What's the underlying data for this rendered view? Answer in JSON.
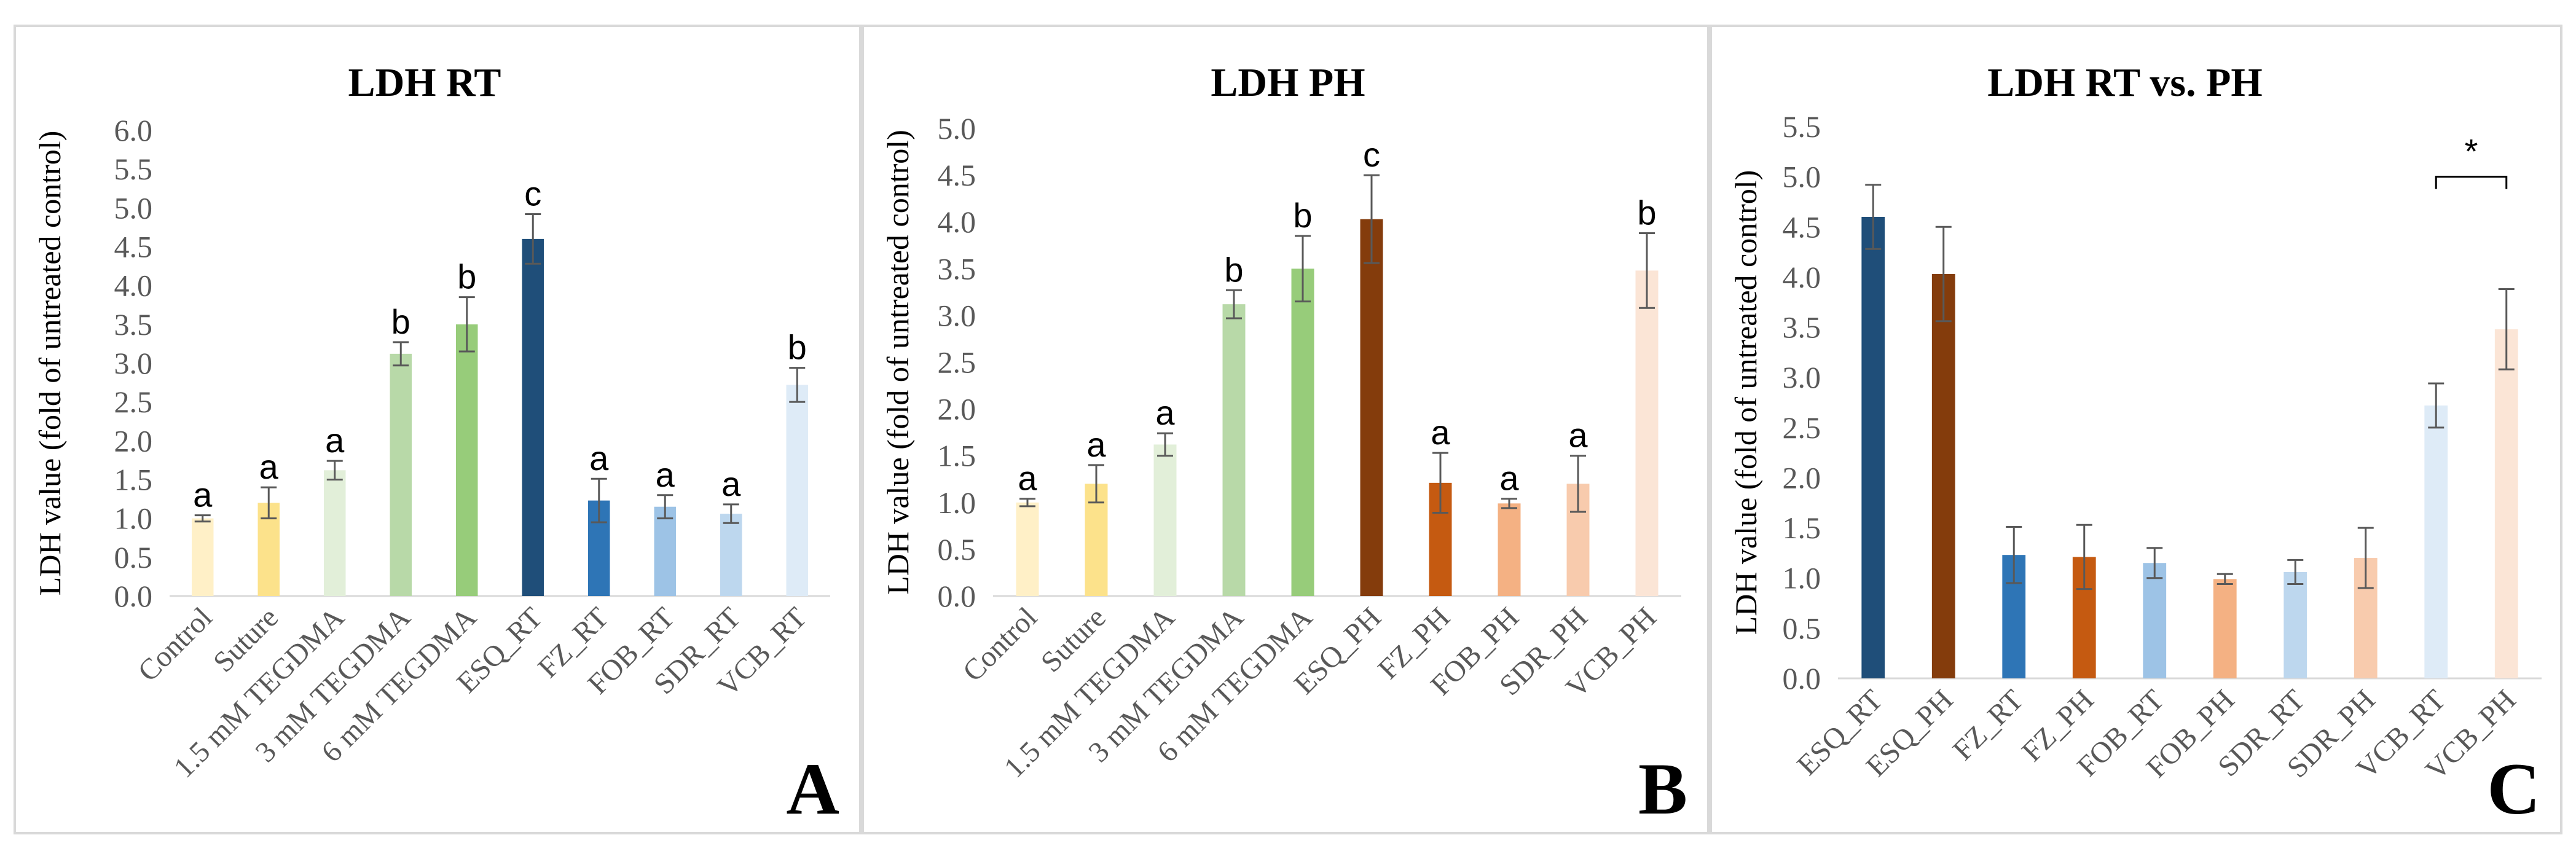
{
  "chart_data": [
    {
      "type": "bar",
      "panel_letter": "A",
      "title": "LDH RT",
      "ylabel": "LDH value (fold of untreated control)",
      "xlabel": "",
      "ylim": [
        0,
        6.0
      ],
      "ytick_step": 0.5,
      "yticks": [
        "0.0",
        "0.5",
        "1.0",
        "1.5",
        "2.0",
        "2.5",
        "3.0",
        "3.5",
        "4.0",
        "4.5",
        "5.0",
        "5.5",
        "6.0"
      ],
      "categories": [
        "Control",
        "Suture",
        "1.5 mM TEGDMA",
        "3 mM TEGDMA",
        "6 mM TEGDMA",
        "ESQ_RT",
        "FZ_RT",
        "FOB_RT",
        "SDR_RT",
        "VCB_RT"
      ],
      "values": [
        1.0,
        1.2,
        1.62,
        3.12,
        3.5,
        4.6,
        1.23,
        1.15,
        1.06,
        2.72
      ],
      "errors": [
        0.04,
        0.2,
        0.12,
        0.15,
        0.35,
        0.32,
        0.28,
        0.15,
        0.12,
        0.22
      ],
      "labels": [
        "a",
        "a",
        "a",
        "b",
        "b",
        "c",
        "a",
        "a",
        "a",
        "b"
      ],
      "colors": [
        "#fff0c7",
        "#fce28b",
        "#e2efd9",
        "#b8d9a8",
        "#97cc7a",
        "#1f4e79",
        "#2e75b6",
        "#9dc3e6",
        "#bdd7ee",
        "#deebf7"
      ],
      "grid": false,
      "legend": "none"
    },
    {
      "type": "bar",
      "panel_letter": "B",
      "title": "LDH PH",
      "ylabel": "LDH value (fold of untreated control)",
      "xlabel": "",
      "ylim": [
        0,
        5.0
      ],
      "ytick_step": 0.5,
      "yticks": [
        "0.0",
        "0.5",
        "1.0",
        "1.5",
        "2.0",
        "2.5",
        "3.0",
        "3.5",
        "4.0",
        "4.5",
        "5.0"
      ],
      "categories": [
        "Control",
        "Suture",
        "1.5 mM TEGDMA",
        "3 mM TEGDMA",
        "6 mM TEGDMA",
        "ESQ_PH",
        "FZ_PH",
        "FOB_PH",
        "SDR_PH",
        "VCB_PH"
      ],
      "values": [
        1.0,
        1.2,
        1.62,
        3.12,
        3.5,
        4.03,
        1.21,
        0.99,
        1.2,
        3.48
      ],
      "errors": [
        0.04,
        0.2,
        0.12,
        0.15,
        0.35,
        0.47,
        0.32,
        0.05,
        0.3,
        0.4
      ],
      "labels": [
        "a",
        "a",
        "a",
        "b",
        "b",
        "c",
        "a",
        "a",
        "a",
        "b"
      ],
      "colors": [
        "#fff0c7",
        "#fce28b",
        "#e2efd9",
        "#b8d9a8",
        "#97cc7a",
        "#843c0c",
        "#c55a11",
        "#f4b183",
        "#f8cbad",
        "#fbe5d6"
      ],
      "grid": false,
      "legend": "none"
    },
    {
      "type": "bar",
      "panel_letter": "C",
      "title": "LDH RT vs. PH",
      "ylabel": "LDH value (fold of untreated control)",
      "xlabel": "",
      "ylim": [
        0,
        5.5
      ],
      "ytick_step": 0.5,
      "yticks": [
        "0.0",
        "0.5",
        "1.0",
        "1.5",
        "2.0",
        "2.5",
        "3.0",
        "3.5",
        "4.0",
        "4.5",
        "5.0",
        "5.5"
      ],
      "categories": [
        "ESQ_RT",
        "ESQ_PH",
        "FZ_RT",
        "FZ_PH",
        "FOB_RT",
        "FOB_PH",
        "SDR_RT",
        "SDR_PH",
        "VCB_RT",
        "VCB_PH"
      ],
      "values": [
        4.6,
        4.03,
        1.23,
        1.21,
        1.15,
        0.99,
        1.06,
        1.2,
        2.72,
        3.48
      ],
      "errors": [
        0.32,
        0.47,
        0.28,
        0.32,
        0.15,
        0.05,
        0.12,
        0.3,
        0.22,
        0.4
      ],
      "labels": [
        "",
        "",
        "",
        "",
        "",
        "",
        "",
        "",
        "",
        ""
      ],
      "colors": [
        "#1f4e79",
        "#843c0c",
        "#2e75b6",
        "#c55a11",
        "#9dc3e6",
        "#f4b183",
        "#bdd7ee",
        "#f8cbad",
        "#deebf7",
        "#fbe5d6"
      ],
      "significance": {
        "from_index": 8,
        "to_index": 9,
        "label": "*",
        "bracket_value": 5.0
      },
      "grid": false,
      "legend": "none"
    }
  ]
}
